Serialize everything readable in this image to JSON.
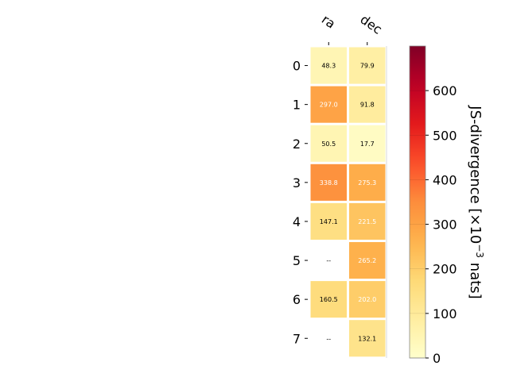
{
  "chart_data": {
    "type": "heatmap",
    "columns": [
      "ra",
      "dec"
    ],
    "rows": [
      "0",
      "1",
      "2",
      "3",
      "4",
      "5",
      "6",
      "7"
    ],
    "values": [
      [
        48.3,
        79.9
      ],
      [
        297.0,
        91.8
      ],
      [
        50.5,
        17.7
      ],
      [
        338.8,
        275.3
      ],
      [
        147.1,
        221.5
      ],
      [
        null,
        265.2
      ],
      [
        160.5,
        202.0
      ],
      [
        null,
        132.1
      ]
    ],
    "cell_labels": [
      [
        "48.3",
        "79.9"
      ],
      [
        "297.0",
        "91.8"
      ],
      [
        "50.5",
        "17.7"
      ],
      [
        "338.8",
        "275.3"
      ],
      [
        "147.1",
        "221.5"
      ],
      [
        "--",
        "265.2"
      ],
      [
        "160.5",
        "202.0"
      ],
      [
        "--",
        "132.1"
      ]
    ],
    "colorbar": {
      "min": 0,
      "max": 700,
      "ticks": [
        0,
        100,
        200,
        300,
        400,
        500,
        600
      ],
      "colormap": "YlOrRd",
      "label_prefix": "JS-divergence [×10",
      "label_exp": "−3",
      "label_suffix": " nats]"
    }
  }
}
